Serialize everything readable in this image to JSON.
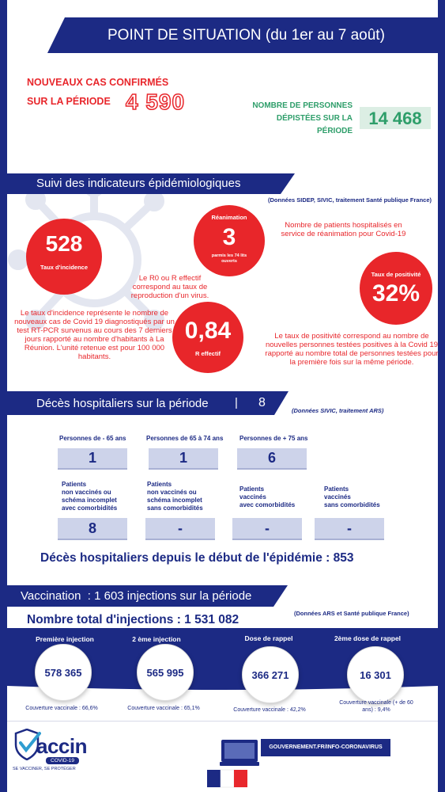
{
  "header": {
    "title": "POINT DE SITUATION (du 1er au 7 août)"
  },
  "new_cases": {
    "label_line1": "NOUVEAUX CAS CONFIRMÉS",
    "label_line2": "SUR LA PÉRIODE",
    "value": "4 590"
  },
  "screened": {
    "label_line1": "NOMBRE DE PERSONNES",
    "label_line2": "DÉPISTÉES SUR LA",
    "label_line3": "PÉRIODE",
    "value": "14 468"
  },
  "indicators": {
    "title": "Suivi des indicateurs épidémiologiques",
    "source": "(Données SIDEP, SIVIC, traitement Santé publique France)",
    "incidence": {
      "value": "528",
      "label": "Taux d'incidence",
      "description": "Le taux d'incidence représente le nombre de nouveaux cas de Covid 19 diagnostiqués par un test RT-PCR survenus au cours des 7 derniers jours rapporté au nombre d'habitants à La Réunion. L'unité retenue est pour 100 000 habitants."
    },
    "icu": {
      "label": "Réanimation",
      "value": "3",
      "sublabel": "parmis les 74 lits ouverts",
      "description": "Nombre de patients hospitalisés en service de réanimation pour Covid-19"
    },
    "reff": {
      "value": "0,84",
      "label": "R effectif",
      "description": "Le R0 ou R effectif correspond au taux de reproduction d'un virus."
    },
    "positivity": {
      "label": "Taux de positivité",
      "value": "32%",
      "description": "Le taux de positivité correspond au nombre de nouvelles personnes testées positives à la Covid 19 rapporté au nombre total de personnes testées pour la première fois sur la même période."
    }
  },
  "deaths": {
    "title": "Décès hospitaliers sur la période",
    "separator": "|",
    "value": "8",
    "source": "(Données SIVIC, traitement ARS)",
    "age_groups": [
      {
        "label": "Personnes de - 65 ans",
        "value": "1"
      },
      {
        "label": "Personnes de 65 à 74 ans",
        "value": "1"
      },
      {
        "label": "Personnes de + 75 ans",
        "value": "6"
      }
    ],
    "status_groups": [
      {
        "line1": "Patients",
        "line2": "non vaccinés ou",
        "line3": "schéma incomplet",
        "line4": "avec comorbidités",
        "value": "8"
      },
      {
        "line1": "Patients",
        "line2": "non vaccinés ou",
        "line3": "schéma incomplet",
        "line4": "sans comorbidités",
        "value": "-"
      },
      {
        "line1": "Patients",
        "line2": "vaccinés",
        "line3": "avec comorbidités",
        "line4": "",
        "value": "-"
      },
      {
        "line1": "Patients",
        "line2": "vaccinés",
        "line3": "sans comorbidités",
        "line4": "",
        "value": "-"
      }
    ],
    "cumulative": "Décès hospitaliers depuis le début de l'épidémie : 853"
  },
  "vaccination": {
    "title": "Vaccination  : 1 603 injections sur la période",
    "source": "(Données ARS et Santé publique France)",
    "total": "Nombre total d'injections : 1 531 082",
    "doses": [
      {
        "label": "Première injection",
        "value": "578 365",
        "coverage": "Couverture vaccinale : 66,6%"
      },
      {
        "label": "2 ème injection",
        "value": "565 995",
        "coverage": "Couverture vaccinale : 65,1%"
      },
      {
        "label": "Dose de rappel",
        "value": "366 271",
        "coverage": "Couverture vaccinale : 42,2%"
      },
      {
        "label": "2ème dose de rappel",
        "value": "16 301",
        "coverage": "Couverture vaccinale (+ de 60 ans) : 9,4%"
      }
    ]
  },
  "footer": {
    "logo_word": "accin",
    "logo_badge": "COVID-19",
    "logo_slogan": "SE VACCINER, SE PROTÉGER",
    "gov_link": "GOUVERNEMENT.FR/INFO-CORONAVIRUS"
  },
  "colors": {
    "navy": "#1c2a84",
    "red": "#e8272c",
    "green": "#2e9e6a",
    "light_box": "#cdd3ea"
  }
}
